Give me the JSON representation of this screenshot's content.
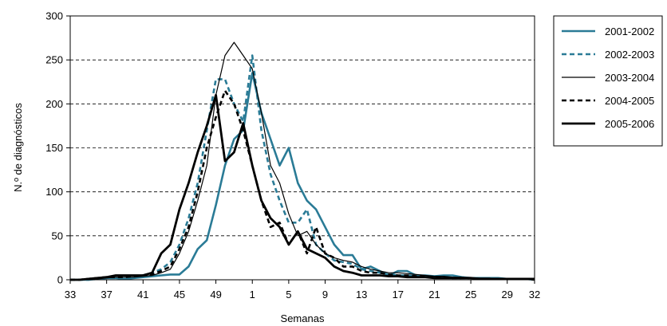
{
  "chart_data": {
    "type": "line",
    "xlabel": "Semanas",
    "ylabel": "N.º de diagnósticos",
    "ylim": [
      0,
      300
    ],
    "yticks": [
      "0",
      "50",
      "100",
      "150",
      "200",
      "250",
      "300"
    ],
    "xticks": [
      "33",
      "37",
      "41",
      "45",
      "49",
      "1",
      "5",
      "9",
      "13",
      "17",
      "21",
      "25",
      "29",
      "32"
    ],
    "grid": "horizontal dashed",
    "legend_position": "top-right",
    "weeks": [
      33,
      34,
      35,
      36,
      37,
      38,
      39,
      40,
      41,
      42,
      43,
      44,
      45,
      46,
      47,
      48,
      49,
      50,
      51,
      52,
      1,
      2,
      3,
      4,
      5,
      6,
      7,
      8,
      9,
      10,
      11,
      12,
      13,
      14,
      15,
      16,
      17,
      18,
      19,
      20,
      21,
      22,
      23,
      24,
      25,
      26,
      27,
      28,
      29,
      30,
      31,
      32
    ],
    "series": [
      {
        "name": "2001-2002",
        "color": "#2a7b96",
        "dash": "",
        "width": 2.6,
        "values": [
          0,
          0,
          0,
          1,
          2,
          2,
          1,
          2,
          3,
          4,
          5,
          6,
          6,
          15,
          35,
          45,
          85,
          130,
          160,
          170,
          235,
          190,
          160,
          130,
          150,
          110,
          90,
          80,
          60,
          40,
          28,
          28,
          12,
          15,
          10,
          5,
          10,
          10,
          5,
          5,
          4,
          5,
          5,
          3,
          2,
          2,
          2,
          2,
          1,
          1,
          1,
          1
        ]
      },
      {
        "name": "2002-2003",
        "color": "#2a7b96",
        "dash": "6,4",
        "width": 2.6,
        "values": [
          0,
          0,
          0,
          1,
          2,
          2,
          3,
          3,
          5,
          8,
          12,
          20,
          40,
          70,
          110,
          170,
          228,
          228,
          200,
          180,
          255,
          170,
          120,
          90,
          65,
          65,
          80,
          40,
          30,
          22,
          20,
          18,
          12,
          10,
          8,
          6,
          5,
          5,
          4,
          3,
          3,
          3,
          2,
          2,
          2,
          2,
          1,
          1,
          1,
          1,
          1,
          0
        ]
      },
      {
        "name": "2003-2004",
        "color": "#000000",
        "dash": "",
        "width": 1.2,
        "values": [
          0,
          0,
          1,
          1,
          2,
          3,
          3,
          3,
          4,
          5,
          8,
          12,
          30,
          55,
          90,
          130,
          210,
          255,
          270,
          255,
          240,
          190,
          130,
          110,
          75,
          50,
          55,
          40,
          30,
          25,
          22,
          20,
          15,
          12,
          10,
          8,
          8,
          7,
          6,
          5,
          4,
          4,
          3,
          3,
          2,
          2,
          2,
          1,
          1,
          1,
          1,
          1
        ]
      },
      {
        "name": "2004-2005",
        "color": "#000000",
        "dash": "6,4",
        "width": 2.6,
        "values": [
          0,
          0,
          1,
          2,
          3,
          3,
          3,
          4,
          5,
          6,
          10,
          15,
          35,
          60,
          100,
          150,
          185,
          215,
          200,
          170,
          130,
          90,
          60,
          65,
          40,
          55,
          30,
          60,
          30,
          25,
          15,
          15,
          10,
          8,
          8,
          6,
          5,
          5,
          4,
          4,
          3,
          3,
          2,
          2,
          2,
          1,
          1,
          1,
          1,
          1,
          1,
          0
        ]
      },
      {
        "name": "2005-2006",
        "color": "#000000",
        "dash": "",
        "width": 2.8,
        "values": [
          0,
          0,
          1,
          2,
          3,
          5,
          5,
          5,
          5,
          8,
          30,
          40,
          80,
          110,
          145,
          175,
          210,
          135,
          145,
          178,
          130,
          90,
          70,
          60,
          40,
          55,
          35,
          30,
          25,
          15,
          10,
          8,
          5,
          5,
          5,
          4,
          4,
          3,
          3,
          3,
          2,
          2,
          2,
          2,
          2,
          1,
          1,
          1,
          1,
          1,
          1,
          1
        ]
      }
    ]
  }
}
